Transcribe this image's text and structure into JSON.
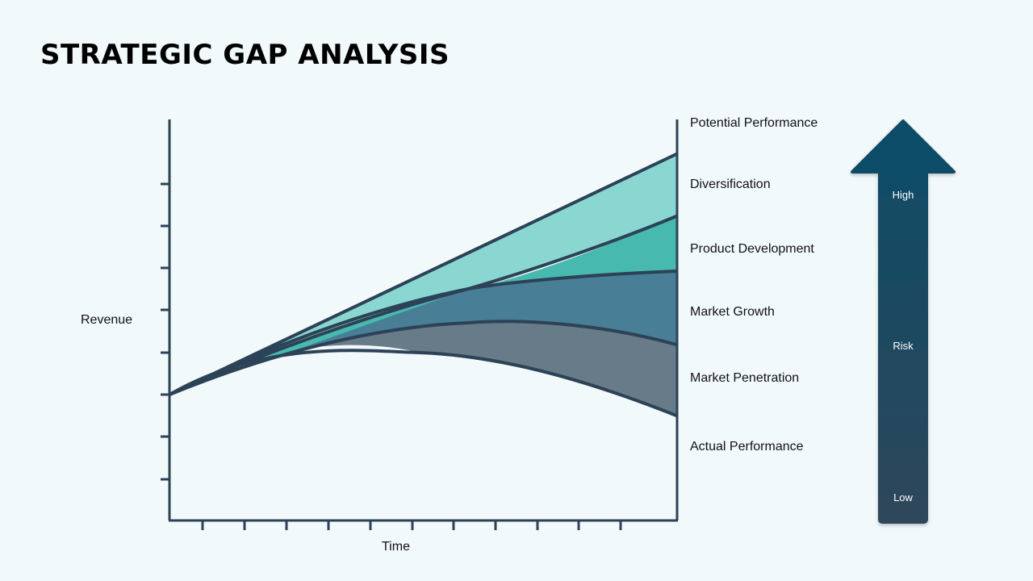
{
  "title": "STRATEGIC GAP ANALYSIS",
  "axes": {
    "y_label": "Revenue",
    "x_label": "Time"
  },
  "bands": [
    {
      "name": "Potential Performance"
    },
    {
      "name": "Diversification",
      "color": "#8ad6d1"
    },
    {
      "name": "Product Development",
      "color": "#48b9ae"
    },
    {
      "name": "Market Growth",
      "color": "#497f96"
    },
    {
      "name": "Market Penetration",
      "color": "#687b89"
    },
    {
      "name": "Actual Performance"
    }
  ],
  "risk_arrow": {
    "top": "High",
    "middle": "Risk",
    "bottom": "Low"
  },
  "colors": {
    "axis": "#2c4256",
    "arrow_top": "#0b4d68",
    "arrow_bottom": "#2f465a"
  }
}
